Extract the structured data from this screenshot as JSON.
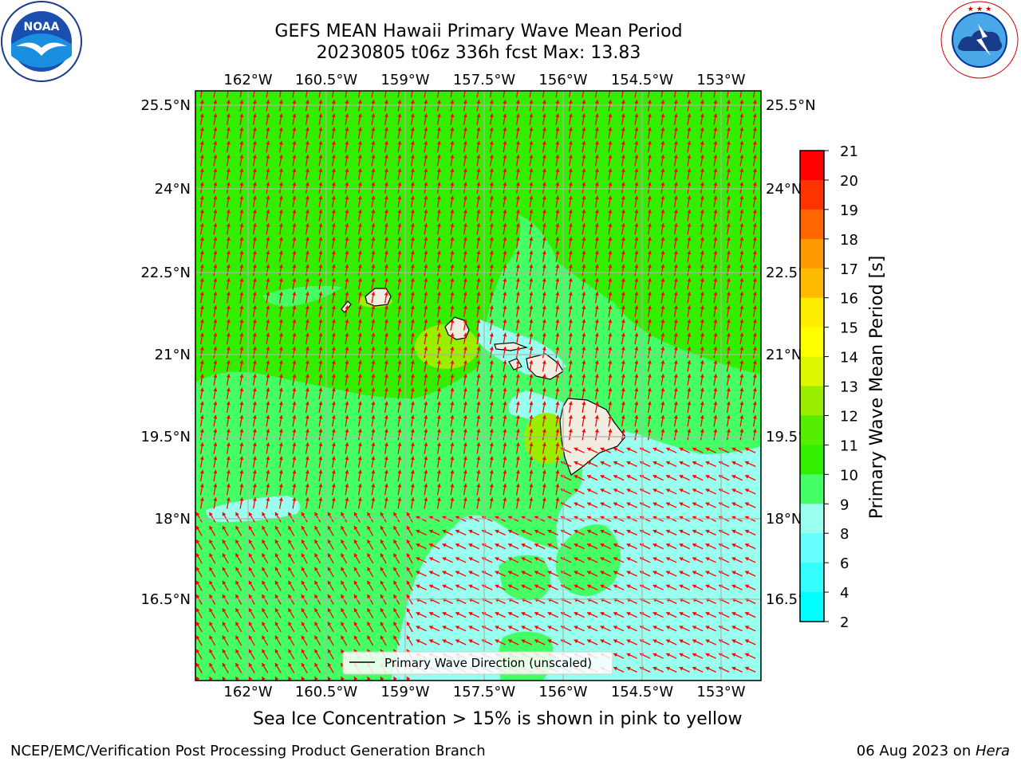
{
  "header": {
    "title_line1": "GEFS MEAN Hawaii Primary Wave Mean Period",
    "title_line2": "20230805 t06z 336h fcst   Max: 13.83"
  },
  "logos": {
    "left": {
      "name": "NOAA",
      "text": "NOAA",
      "ring_text": "NATIONAL OCEANIC AND ATMOSPHERIC ADMINISTRATION · U.S. DEPARTMENT OF COMMERCE"
    },
    "right": {
      "name": "National Weather Service",
      "ring_text": "NATIONAL WEATHER SERVICE"
    }
  },
  "map": {
    "lon_labels": [
      "162°W",
      "160.5°W",
      "159°W",
      "157.5°W",
      "156°W",
      "154.5°W",
      "153°W"
    ],
    "lat_labels": [
      "25.5°N",
      "24°N",
      "22.5°N",
      "21°N",
      "19.5°N",
      "18°N",
      "16.5°N"
    ],
    "legend_label": "Primary Wave Direction (unscaled)",
    "arrow_color": "#ff0000",
    "land_color": "#f0ece0",
    "grid_color": "#b0b0b0"
  },
  "colorbar": {
    "label": "Primary Wave Mean Period [s]",
    "ticks": [
      "21",
      "20",
      "19",
      "18",
      "17",
      "16",
      "15",
      "14",
      "13",
      "12",
      "11",
      "10",
      "9",
      "8",
      "6",
      "4",
      "2"
    ],
    "colors_top_to_bottom": [
      "#ff0000",
      "#ff3300",
      "#ff6600",
      "#ff9900",
      "#ffbb00",
      "#ffee00",
      "#ffff00",
      "#ddf700",
      "#99ee00",
      "#55ee00",
      "#33ee00",
      "#44ff66",
      "#99ffee",
      "#66ffff",
      "#33ffff",
      "#00ffff",
      "#0099ff",
      "#3300ff",
      "#0000ff"
    ]
  },
  "chart_data": {
    "type": "heatmap",
    "title": "GEFS MEAN Hawaii Primary Wave Mean Period",
    "subtitle": "20230805 t06z 336h fcst   Max: 13.83",
    "variable": "Primary Wave Mean Period",
    "units": "s",
    "max_value": 13.83,
    "lon_range": [
      -163,
      -152.2
    ],
    "lat_range": [
      15,
      26
    ],
    "colorbar_ticks": [
      2,
      4,
      6,
      8,
      9,
      10,
      11,
      12,
      13,
      14,
      15,
      16,
      17,
      18,
      19,
      20,
      21
    ]
  },
  "notes": {
    "sea_ice": "Sea Ice Concentration > 15% is shown in pink to yellow"
  },
  "footer": {
    "left": "NCEP/EMC/Verification Post Processing Product Generation Branch",
    "date": "06 Aug 2023 on ",
    "machine": "Hera"
  }
}
